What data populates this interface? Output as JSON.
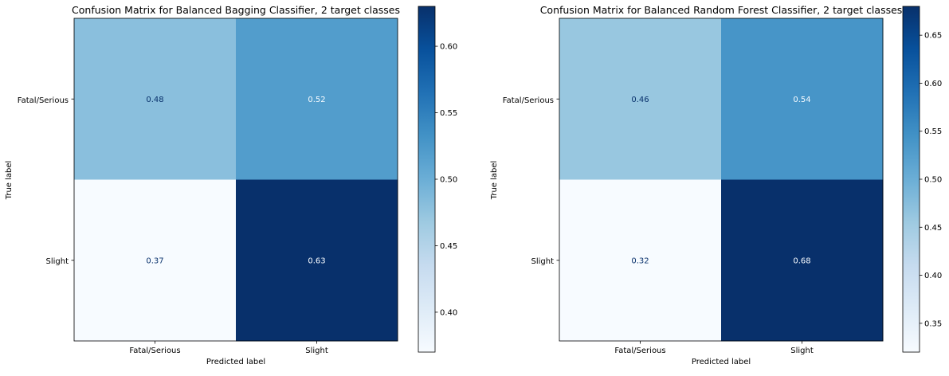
{
  "chart_data": [
    {
      "type": "heatmap",
      "title": "Confusion Matrix for Balanced Bagging Classifier, 2 target classes",
      "xlabel": "Predicted label",
      "ylabel": "True label",
      "x_categories": [
        "Fatal/Serious",
        "Slight"
      ],
      "y_categories": [
        "Fatal/Serious",
        "Slight"
      ],
      "values": [
        [
          0.48,
          0.52
        ],
        [
          0.37,
          0.63
        ]
      ],
      "value_labels": [
        [
          "0.48",
          "0.52"
        ],
        [
          "0.37",
          "0.63"
        ]
      ],
      "colormap": "Blues",
      "colorbar": {
        "range": [
          0.37,
          0.63
        ],
        "ticks": [
          0.4,
          0.45,
          0.5,
          0.55,
          0.6
        ],
        "tick_labels": [
          "0.40",
          "0.45",
          "0.50",
          "0.55",
          "0.60"
        ]
      }
    },
    {
      "type": "heatmap",
      "title": "Confusion Matrix for Balanced Random Forest Classifier, 2 target classes",
      "xlabel": "Predicted label",
      "ylabel": "True label",
      "x_categories": [
        "Fatal/Serious",
        "Slight"
      ],
      "y_categories": [
        "Fatal/Serious",
        "Slight"
      ],
      "values": [
        [
          0.46,
          0.54
        ],
        [
          0.32,
          0.68
        ]
      ],
      "value_labels": [
        [
          "0.46",
          "0.54"
        ],
        [
          "0.32",
          "0.68"
        ]
      ],
      "colormap": "Blues",
      "colorbar": {
        "range": [
          0.32,
          0.68
        ],
        "ticks": [
          0.35,
          0.4,
          0.45,
          0.5,
          0.55,
          0.6,
          0.65
        ],
        "tick_labels": [
          "0.35",
          "0.40",
          "0.45",
          "0.50",
          "0.55",
          "0.60",
          "0.65"
        ]
      }
    }
  ]
}
